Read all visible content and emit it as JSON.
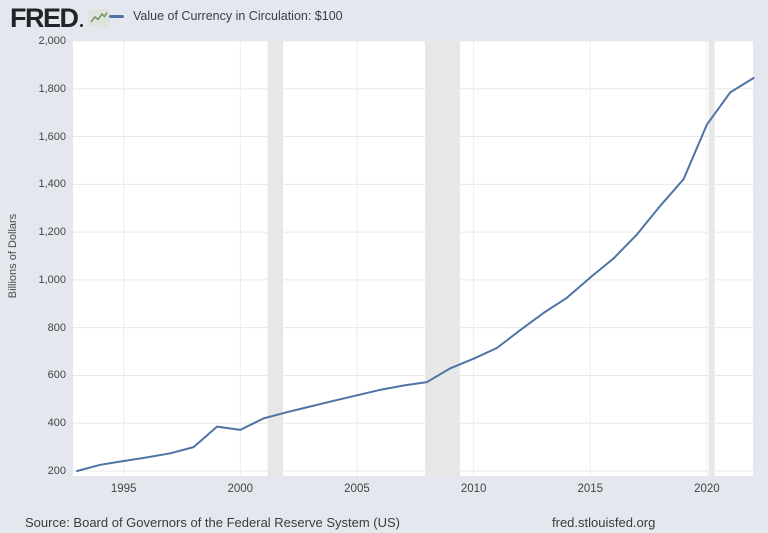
{
  "header": {
    "logo_text": "FRED",
    "logo_icon": "fred-sparkline-icon",
    "legend_label": "Value of Currency in Circulation: $100",
    "legend_color": "#4e73a5"
  },
  "footer": {
    "source": "Source: Board of Governors of the Federal Reserve System (US)",
    "site": "fred.stlouisfed.org"
  },
  "chart_data": {
    "type": "line",
    "title": "Value of Currency in Circulation: $100",
    "series": [
      {
        "name": "Value of Currency in Circulation: $100",
        "color": "#4e73a5",
        "values": [
          200,
          226,
          242,
          257,
          274,
          300,
          386,
          372,
          420,
          446,
          470,
          494,
          517,
          540,
          558,
          572,
          630,
          670,
          715,
          790,
          862,
          925,
          1010,
          1090,
          1190,
          1310,
          1422,
          1650,
          1785,
          1845
        ]
      }
    ],
    "x": [
      1993,
      1994,
      1995,
      1996,
      1997,
      1998,
      1999,
      2000,
      2001,
      2002,
      2003,
      2004,
      2005,
      2006,
      2007,
      2008,
      2009,
      2010,
      2011,
      2012,
      2013,
      2014,
      2015,
      2016,
      2017,
      2018,
      2019,
      2020,
      2021,
      2022
    ],
    "xlabel": "",
    "ylabel": "Billions of Dollars",
    "ylim": [
      200,
      2000
    ],
    "xlim": [
      1993,
      2022
    ],
    "y_ticks": [
      200,
      400,
      600,
      800,
      1000,
      1200,
      1400,
      1600,
      1800,
      2000
    ],
    "x_ticks": [
      1995,
      2000,
      2005,
      2010,
      2015,
      2020
    ],
    "grid": true,
    "legend_position": "top-left-header",
    "recession_bands": [
      [
        2001.17,
        2001.83
      ],
      [
        2007.92,
        2009.42
      ],
      [
        2020.08,
        2020.33
      ]
    ],
    "colors": {
      "outer_background": "#e4e8ee",
      "plot_background": "#ffffff",
      "h_gridline": "#e8e8e8",
      "v_gridline": "#ededed",
      "recession_band": "#e7e7e7",
      "line": "#4e73a5"
    }
  }
}
